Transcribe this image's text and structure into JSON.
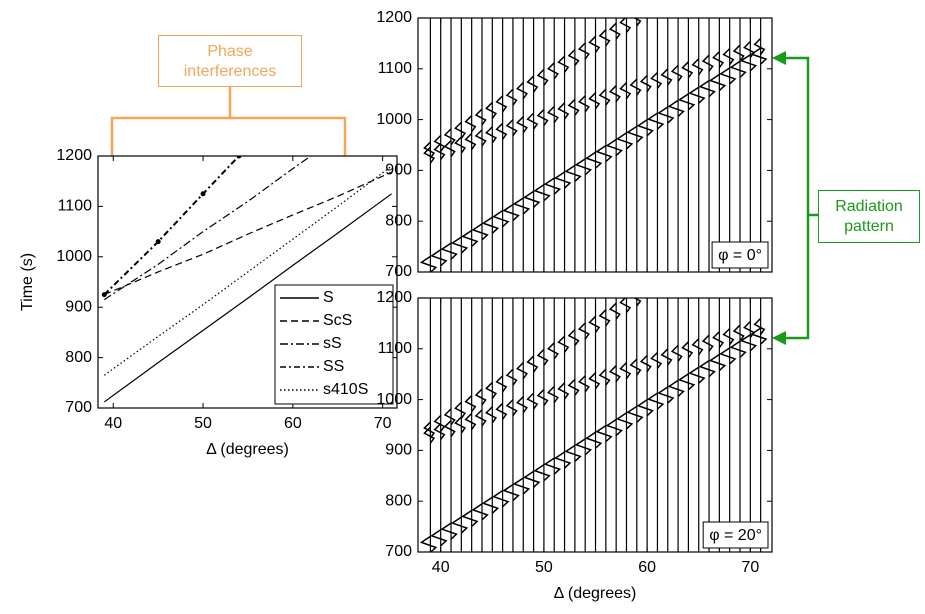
{
  "chart_data": [
    {
      "type": "line",
      "ylabel": "Time (s)",
      "xlabel": "Δ (degrees)",
      "xlim": [
        38.3,
        71.6
      ],
      "xticks": [
        40,
        50,
        60,
        70
      ],
      "ylim": [
        700,
        1200
      ],
      "yticks": [
        700,
        800,
        900,
        1000,
        1100,
        1200
      ],
      "legend": "lower-right",
      "series": [
        {
          "name": "S",
          "color": "#000000",
          "style": "solid",
          "x": [
            39,
            45,
            50,
            55,
            60,
            65,
            71
          ],
          "values": [
            712,
            790,
            854,
            918,
            983,
            1047,
            1125
          ]
        },
        {
          "name": "ScS",
          "color": "#000000",
          "style": "dashed",
          "x": [
            39,
            45,
            50,
            55,
            60,
            65,
            71
          ],
          "values": [
            925,
            970,
            1005,
            1045,
            1083,
            1120,
            1168
          ]
        },
        {
          "name": "sS",
          "color": "#000000",
          "style": "dashdot",
          "x": [
            39,
            45,
            50,
            55,
            60,
            62
          ],
          "values": [
            915,
            985,
            1050,
            1110,
            1175,
            1200
          ]
        },
        {
          "name": "SS",
          "color": "#000000",
          "style": "dashdot-marker",
          "x": [
            39,
            45,
            50,
            54
          ],
          "values": [
            925,
            1030,
            1125,
            1200
          ]
        },
        {
          "name": "s410S",
          "color": "#000000",
          "style": "dotted",
          "x": [
            39,
            45,
            50,
            55,
            60,
            65,
            71
          ],
          "values": [
            765,
            842,
            905,
            970,
            1035,
            1100,
            1180
          ]
        }
      ]
    },
    {
      "type": "seismogram",
      "label": "φ = 0°",
      "show_xtick_labels": false,
      "xlim": [
        37.8,
        72.1
      ],
      "xticks": [
        40,
        50,
        60,
        70
      ],
      "ylim": [
        700,
        1200
      ],
      "yticks": [
        700,
        800,
        900,
        1000,
        1100,
        1200
      ],
      "x": [
        39,
        40,
        41,
        42,
        43,
        44,
        45,
        46,
        47,
        48,
        49,
        50,
        51,
        52,
        53,
        54,
        55,
        56,
        57,
        58,
        59,
        60,
        61,
        62,
        63,
        64,
        65,
        66,
        67,
        68,
        69,
        70,
        71
      ],
      "series": [
        {
          "values": [
            715,
            728,
            741,
            753,
            766,
            779,
            792,
            805,
            817,
            830,
            843,
            856,
            869,
            881,
            894,
            907,
            920,
            933,
            945,
            958,
            971,
            984,
            997,
            1009,
            1022,
            1035,
            1048,
            1061,
            1073,
            1086,
            1099,
            1112,
            1125
          ]
        },
        {
          "values": [
            930,
            937,
            943,
            950,
            957,
            964,
            970,
            977,
            984,
            990,
            997,
            1004,
            1010,
            1017,
            1024,
            1031,
            1037,
            1044,
            1051,
            1057,
            1064,
            1071,
            1077,
            1084,
            1091,
            1098,
            1104,
            1111,
            1118,
            1124,
            1131,
            1138,
            1144
          ]
        },
        {
          "values": [
            940,
            953,
            966,
            979,
            992,
            1005,
            1018,
            1031,
            1044,
            1057,
            1070,
            1083,
            1096,
            1109,
            1122,
            1135,
            1148,
            1161,
            1174,
            1187,
            1200,
            null,
            null,
            null,
            null,
            null,
            null,
            null,
            null,
            null,
            null,
            null,
            null
          ]
        }
      ]
    },
    {
      "type": "seismogram",
      "label": "φ = 20°",
      "xlabel": "Δ (degrees)",
      "show_xtick_labels": true,
      "xlim": [
        37.8,
        72.1
      ],
      "xticks": [
        40,
        50,
        60,
        70
      ],
      "ylim": [
        700,
        1200
      ],
      "yticks": [
        700,
        800,
        900,
        1000,
        1100,
        1200
      ],
      "x": [
        39,
        40,
        41,
        42,
        43,
        44,
        45,
        46,
        47,
        48,
        49,
        50,
        51,
        52,
        53,
        54,
        55,
        56,
        57,
        58,
        59,
        60,
        61,
        62,
        63,
        64,
        65,
        66,
        67,
        68,
        69,
        70,
        71
      ],
      "series": [
        {
          "values": [
            715,
            728,
            741,
            753,
            766,
            779,
            792,
            805,
            817,
            830,
            843,
            856,
            869,
            881,
            894,
            907,
            920,
            933,
            945,
            958,
            971,
            984,
            997,
            1009,
            1022,
            1035,
            1048,
            1061,
            1073,
            1086,
            1099,
            1112,
            1125
          ]
        },
        {
          "values": [
            930,
            937,
            943,
            950,
            957,
            964,
            970,
            977,
            984,
            990,
            997,
            1004,
            1010,
            1017,
            1024,
            1031,
            1037,
            1044,
            1051,
            1057,
            1064,
            1071,
            1077,
            1084,
            1091,
            1098,
            1104,
            1111,
            1118,
            1124,
            1131,
            1138,
            1144
          ]
        },
        {
          "values": [
            940,
            953,
            966,
            979,
            992,
            1005,
            1018,
            1031,
            1044,
            1057,
            1070,
            1083,
            1096,
            1109,
            1122,
            1135,
            1148,
            1161,
            1174,
            1187,
            1200,
            null,
            null,
            null,
            null,
            null,
            null,
            null,
            null,
            null,
            null,
            null,
            null
          ]
        }
      ]
    }
  ],
  "annotations": [
    "Phase interferences",
    "Radiation pattern"
  ]
}
